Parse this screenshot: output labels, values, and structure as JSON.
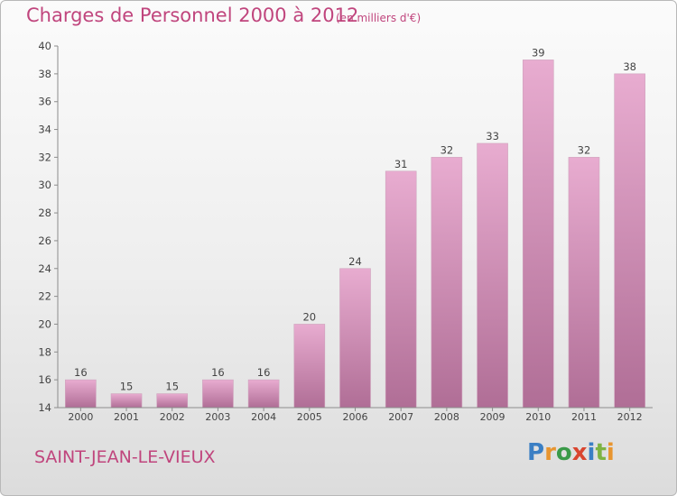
{
  "header": {
    "title": "Charges de Personnel 2000 à 2012",
    "subtitle": "(en milliers d'€)"
  },
  "footer": {
    "place": "SAINT-JEAN-LE-VIEUX",
    "logo": "Proxiti"
  },
  "colors": {
    "bar_top": "#e8acd0",
    "bar_bottom": "#b06e96",
    "title": "#c0457d"
  },
  "chart_data": {
    "type": "bar",
    "title": "Charges de Personnel 2000 à 2012",
    "subtitle": "(en milliers d'€)",
    "categories": [
      "2000",
      "2001",
      "2002",
      "2003",
      "2004",
      "2005",
      "2006",
      "2007",
      "2008",
      "2009",
      "2010",
      "2011",
      "2012"
    ],
    "values": [
      16,
      15,
      15,
      16,
      16,
      20,
      24,
      31,
      32,
      33,
      39,
      32,
      38
    ],
    "ylim": [
      14,
      40
    ],
    "yticks": [
      14,
      16,
      18,
      20,
      22,
      24,
      26,
      28,
      30,
      32,
      34,
      36,
      38,
      40
    ],
    "grid": false,
    "legend": "none"
  }
}
